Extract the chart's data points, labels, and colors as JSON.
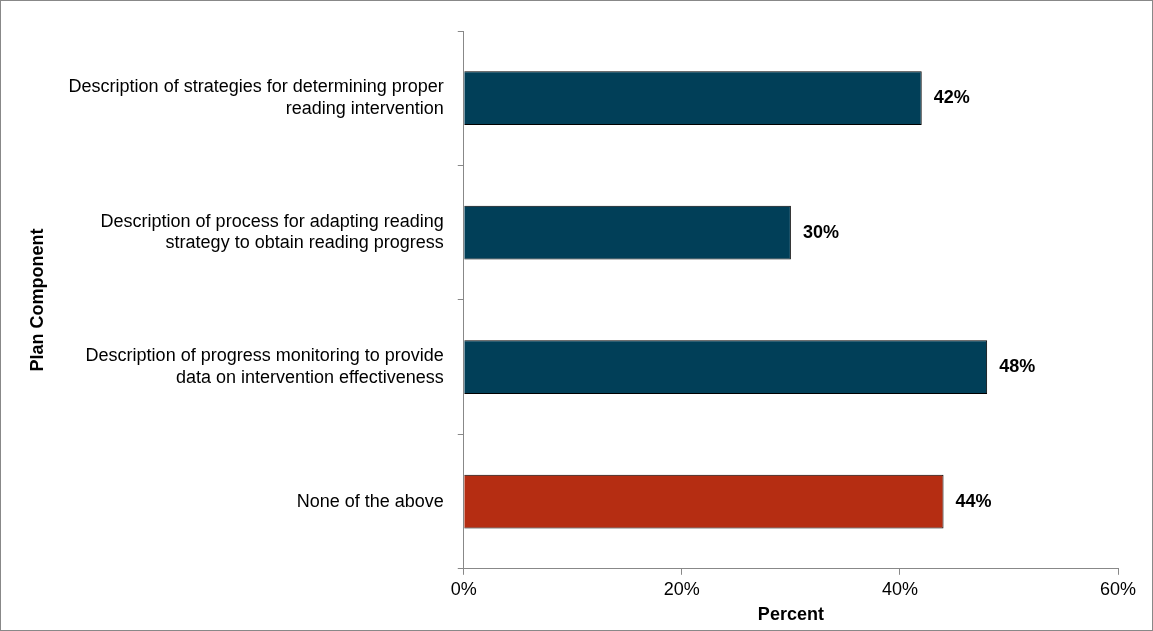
{
  "chart_data": {
    "type": "bar",
    "orientation": "horizontal",
    "xlabel": "Percent",
    "ylabel": "Plan Component",
    "categories": [
      "Description of strategies for determining proper reading intervention",
      "Description of process for adapting reading strategy to obtain reading progress",
      "Description of progress monitoring to provide data on intervention effectiveness",
      "None of the above"
    ],
    "values": [
      42,
      30,
      48,
      44
    ],
    "colors": [
      "#013f58",
      "#013f58",
      "#013f58",
      "#b52d12"
    ],
    "value_labels": [
      "42%",
      "30%",
      "48%",
      "44%"
    ],
    "xlim": [
      0,
      60
    ],
    "xticks": [
      {
        "value": 0,
        "label": "0%"
      },
      {
        "value": 20,
        "label": "20%"
      },
      {
        "value": 40,
        "label": "40%"
      },
      {
        "value": 60,
        "label": "60%"
      }
    ],
    "grid": false,
    "legend": false
  }
}
